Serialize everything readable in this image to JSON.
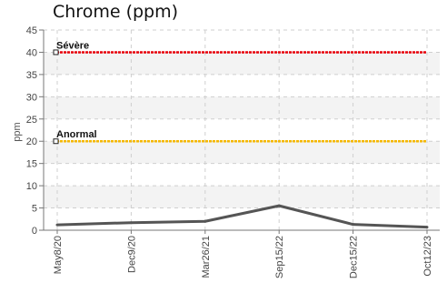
{
  "chart_data": {
    "type": "line",
    "title": "Chrome (ppm)",
    "xlabel": "",
    "ylabel": "ppm",
    "ylim": [
      0,
      45
    ],
    "yticks": [
      0,
      5,
      10,
      15,
      20,
      25,
      30,
      35,
      40,
      45
    ],
    "grid": true,
    "categories": [
      "May8/20",
      "Dec9/20",
      "Mar26/21",
      "Sep15/22",
      "Dec15/22",
      "Oct12/23"
    ],
    "series": [
      {
        "values": [
          1.2,
          1.7,
          2.0,
          5.5,
          1.3,
          0.7
        ],
        "color": "#555555"
      }
    ],
    "thresholds": [
      {
        "label": "Sévère",
        "value": 40,
        "color": "#e8000b"
      },
      {
        "label": "Anormal",
        "value": 20,
        "color": "#f5b800"
      }
    ]
  }
}
